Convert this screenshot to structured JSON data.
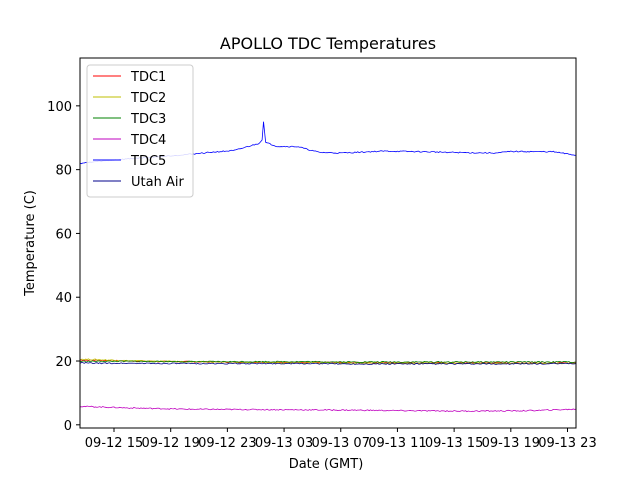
{
  "chart_data": {
    "type": "line",
    "title": "APOLLO TDC Temperatures",
    "xlabel": "Date (GMT)",
    "ylabel": "Temperature (C)",
    "xlim_hours": [
      12.6,
      47.6
    ],
    "ylim": [
      -1,
      115
    ],
    "grid": false,
    "legend_position": "top-left",
    "x_ticks": [
      {
        "label": "09-12 15",
        "hour": 15
      },
      {
        "label": "09-12 19",
        "hour": 19
      },
      {
        "label": "09-12 23",
        "hour": 23
      },
      {
        "label": "09-13 03",
        "hour": 27
      },
      {
        "label": "09-13 07",
        "hour": 31
      },
      {
        "label": "09-13 11",
        "hour": 35
      },
      {
        "label": "09-13 15",
        "hour": 39
      },
      {
        "label": "09-13 19",
        "hour": 43
      },
      {
        "label": "09-13 23",
        "hour": 47
      }
    ],
    "y_ticks": [
      0,
      20,
      40,
      60,
      80,
      100
    ],
    "series": [
      {
        "name": "TDC1",
        "color": "#ff0000",
        "x": [
          12.6,
          14,
          16,
          20,
          24,
          28,
          32,
          36,
          40,
          44,
          47.6
        ],
        "y": [
          20.3,
          20.2,
          20.0,
          19.8,
          19.6,
          19.6,
          19.5,
          19.4,
          19.4,
          19.4,
          19.4
        ]
      },
      {
        "name": "TDC2",
        "color": "#bfbf00",
        "x": [
          12.6,
          14,
          16,
          20,
          24,
          28,
          32,
          36,
          40,
          44,
          47.6
        ],
        "y": [
          20.6,
          20.4,
          20.1,
          19.8,
          19.6,
          19.5,
          19.4,
          19.3,
          19.3,
          19.3,
          19.3
        ]
      },
      {
        "name": "TDC3",
        "color": "#008000",
        "x": [
          12.6,
          14,
          16,
          20,
          24,
          28,
          32,
          36,
          40,
          44,
          47.6
        ],
        "y": [
          19.9,
          19.9,
          19.9,
          19.8,
          19.8,
          19.8,
          19.7,
          19.7,
          19.7,
          19.7,
          19.7
        ]
      },
      {
        "name": "TDC4",
        "color": "#bf00bf",
        "x": [
          12.6,
          14,
          16,
          20,
          24,
          28,
          32,
          36,
          40,
          44,
          47.6
        ],
        "y": [
          5.8,
          5.6,
          5.3,
          4.9,
          4.8,
          4.7,
          4.6,
          4.4,
          4.3,
          4.4,
          4.9
        ]
      },
      {
        "name": "TDC5",
        "color": "#0000ff",
        "x": [
          12.6,
          14,
          16,
          18,
          20,
          22,
          23.5,
          24.5,
          25.2,
          25.45,
          25.55,
          25.7,
          26.5,
          28,
          28.6,
          29.5,
          31,
          34,
          37,
          40,
          42,
          43,
          46,
          47.6
        ],
        "y": [
          82.0,
          82.6,
          83.4,
          84.0,
          84.7,
          85.5,
          86.0,
          87.3,
          88.2,
          89.3,
          95.2,
          88.5,
          87.3,
          87.2,
          86.4,
          85.4,
          85.2,
          85.8,
          85.6,
          85.3,
          85.2,
          85.7,
          85.6,
          84.5
        ]
      },
      {
        "name": "Utah Air",
        "color": "#00008b",
        "x": [
          12.6,
          14,
          16,
          20,
          24,
          28,
          32,
          36,
          40,
          44,
          47.6
        ],
        "y": [
          19.4,
          19.3,
          19.3,
          19.2,
          19.2,
          19.2,
          19.1,
          19.1,
          19.1,
          19.1,
          19.2
        ]
      }
    ]
  }
}
